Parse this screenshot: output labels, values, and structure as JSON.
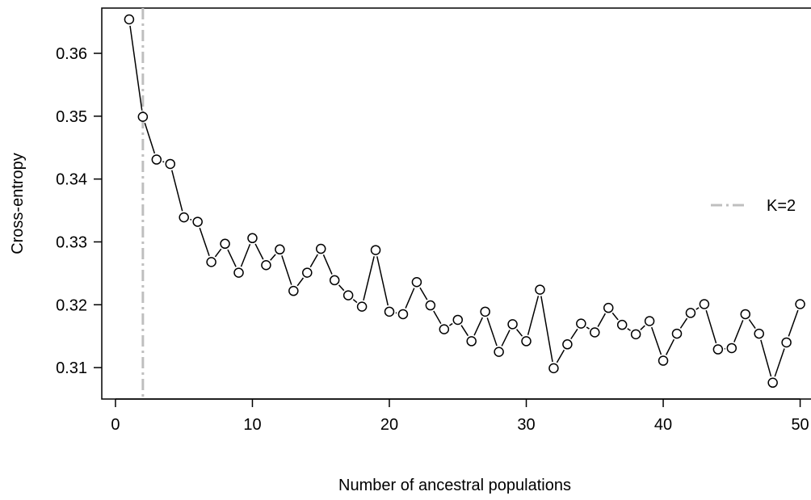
{
  "chart_data": {
    "type": "line",
    "title": "",
    "xlabel": "Number of ancestral populations",
    "ylabel": "Cross-entropy",
    "xlim": [
      -1,
      51.5
    ],
    "ylim": [
      0.305,
      0.3672
    ],
    "xticks": [
      0,
      10,
      20,
      30,
      40,
      50
    ],
    "yticks": [
      0.31,
      0.32,
      0.33,
      0.34,
      0.35,
      0.36
    ],
    "grid": false,
    "legend": {
      "placement": "right",
      "entries": [
        {
          "label": "K=2",
          "style": "dashed",
          "color": "#bfbfbf"
        }
      ]
    },
    "reference_line": {
      "x": 2,
      "color": "#bfbfbf",
      "style": "dashed"
    },
    "series": [
      {
        "x": [
          1,
          2,
          3,
          4,
          5,
          6,
          7,
          8,
          9,
          10,
          11,
          12,
          13,
          14,
          15,
          16,
          17,
          18,
          19,
          20,
          21,
          22,
          23,
          24,
          25,
          26,
          27,
          28,
          29,
          30,
          31,
          32,
          33,
          34,
          35,
          36,
          37,
          38,
          39,
          40,
          41,
          42,
          43,
          44,
          45,
          46,
          47,
          48,
          49,
          50
        ],
        "values": [
          0.3654,
          0.3499,
          0.3431,
          0.3424,
          0.3339,
          0.3332,
          0.3268,
          0.3297,
          0.3251,
          0.3306,
          0.3263,
          0.3288,
          0.3222,
          0.3251,
          0.3289,
          0.3239,
          0.3215,
          0.3197,
          0.3287,
          0.3189,
          0.3185,
          0.3236,
          0.3199,
          0.3161,
          0.3176,
          0.3142,
          0.3189,
          0.3125,
          0.3169,
          0.3142,
          0.3224,
          0.3099,
          0.3137,
          0.317,
          0.3156,
          0.3195,
          0.3168,
          0.3153,
          0.3174,
          0.3111,
          0.3154,
          0.3187,
          0.3201,
          0.3129,
          0.3131,
          0.3185,
          0.3154,
          0.3076,
          0.314,
          0.3201
        ]
      }
    ]
  }
}
